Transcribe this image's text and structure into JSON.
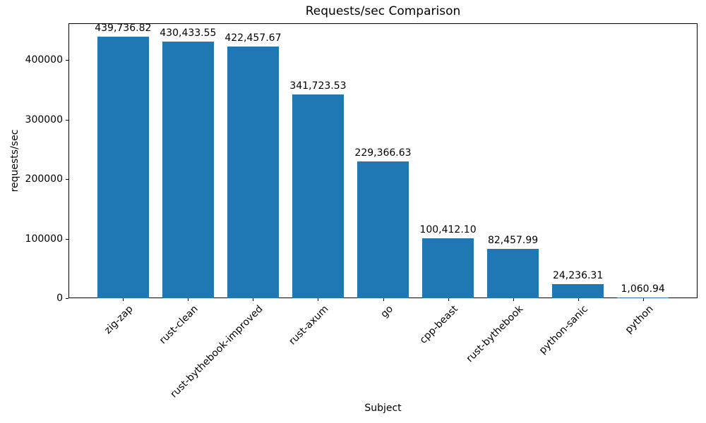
{
  "colors": {
    "background": "#ffffff",
    "bar": "#1f77b4",
    "spine": "#000000",
    "text": "#000000"
  },
  "chart_data": {
    "type": "bar",
    "title": "Requests/sec Comparison",
    "xlabel": "Subject",
    "ylabel": "requests/sec",
    "categories": [
      "zig-zap",
      "rust-clean",
      "rust-bythebook-improved",
      "rust-axum",
      "go",
      "cpp-beast",
      "rust-bythebook",
      "python-sanic",
      "python"
    ],
    "values": [
      439736.82,
      430433.55,
      422457.67,
      341723.53,
      229366.63,
      100412.1,
      82457.99,
      24236.31,
      1060.94
    ],
    "value_labels": [
      "439,736.82",
      "430,433.55",
      "422,457.67",
      "341,723.53",
      "229,366.63",
      "100,412.10",
      "82,457.99",
      "24,236.31",
      "1,060.94"
    ],
    "yticks": [
      0,
      100000,
      200000,
      300000,
      400000
    ],
    "ytick_labels": [
      "0",
      "100000",
      "200000",
      "300000",
      "400000"
    ],
    "ylim": [
      0,
      461723.66
    ],
    "bar_color": "#1f77b4",
    "bar_width_fraction": 0.8,
    "grid": false,
    "legend": null,
    "xtick_rotation_deg": 45
  }
}
